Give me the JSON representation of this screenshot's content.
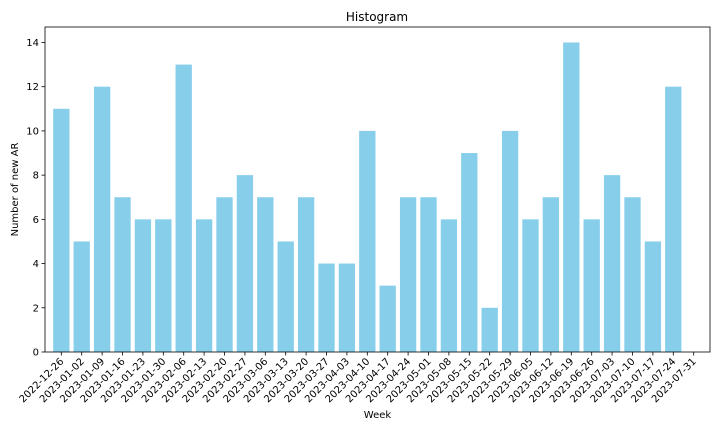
{
  "chart_data": {
    "type": "bar",
    "title": "Histogram",
    "xlabel": "Week",
    "ylabel": "Number of new AR",
    "categories": [
      "2022-12-26",
      "2023-01-02",
      "2023-01-09",
      "2023-01-16",
      "2023-01-23",
      "2023-01-30",
      "2023-02-06",
      "2023-02-13",
      "2023-02-20",
      "2023-02-27",
      "2023-03-06",
      "2023-03-13",
      "2023-03-20",
      "2023-03-27",
      "2023-04-03",
      "2023-04-10",
      "2023-04-17",
      "2023-04-24",
      "2023-05-01",
      "2023-05-08",
      "2023-05-15",
      "2023-05-22",
      "2023-05-29",
      "2023-06-05",
      "2023-06-12",
      "2023-06-19",
      "2023-06-26",
      "2023-07-03",
      "2023-07-10",
      "2023-07-17",
      "2023-07-24",
      "2023-07-31"
    ],
    "values": [
      11,
      5,
      12,
      7,
      6,
      6,
      13,
      6,
      7,
      8,
      7,
      5,
      7,
      4,
      4,
      10,
      3,
      7,
      7,
      6,
      9,
      2,
      10,
      6,
      7,
      14,
      6,
      8,
      7,
      5,
      12,
      null
    ],
    "ylim": [
      0,
      14.7
    ],
    "yticks": [
      0,
      2,
      4,
      6,
      8,
      10,
      12,
      14
    ],
    "grid": false,
    "bar_color": "#87ceeb"
  }
}
